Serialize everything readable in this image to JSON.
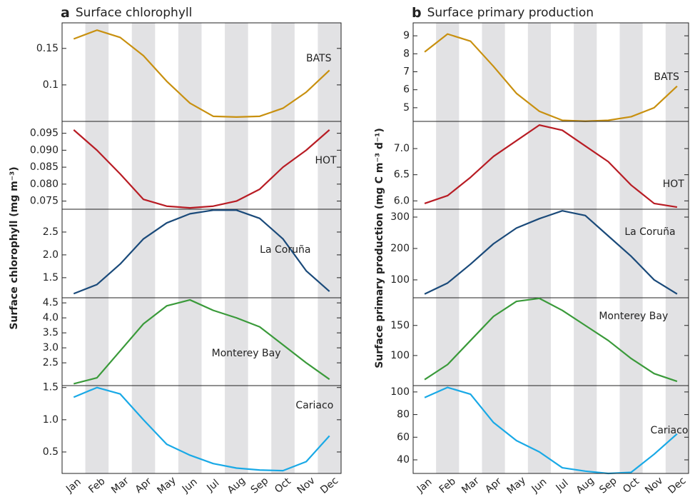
{
  "chart_data": [
    {
      "type": "line",
      "panel_label": "a",
      "title": "Surface chlorophyll",
      "y_label": "Surface chlorophyll (mg m⁻³)",
      "categories": [
        "Jan",
        "Feb",
        "Mar",
        "Apr",
        "May",
        "Jun",
        "Jul",
        "Aug",
        "Sep",
        "Oct",
        "Nov",
        "Dec"
      ],
      "panels": [
        {
          "name": "BATS",
          "color": "#c8900f",
          "values": [
            0.163,
            0.175,
            0.165,
            0.14,
            0.105,
            0.075,
            0.057,
            0.056,
            0.057,
            0.068,
            0.09,
            0.12
          ],
          "ylim": [
            0.05,
            0.185
          ],
          "yticks": [
            0.1,
            0.15
          ]
        },
        {
          "name": "HOT",
          "color": "#b81c24",
          "values": [
            0.096,
            0.09,
            0.083,
            0.0755,
            0.0735,
            0.073,
            0.0735,
            0.075,
            0.0785,
            0.085,
            0.09,
            0.096
          ],
          "ylim": [
            0.0726,
            0.0985
          ],
          "yticks": [
            0.075,
            {
              "value": 0.08,
              "label": "0.080"
            },
            0.085,
            {
              "value": 0.09,
              "label": "0.090"
            },
            0.095
          ]
        },
        {
          "name": "La Coruña",
          "color": "#1a4a7a",
          "values": [
            1.15,
            1.35,
            1.8,
            2.35,
            2.7,
            2.9,
            2.98,
            2.98,
            2.8,
            2.35,
            1.65,
            1.2
          ],
          "ylim": [
            1.06,
            3.0
          ],
          "yticks": [
            1.5,
            {
              "value": 2,
              "label": "2.0"
            },
            2.5
          ]
        },
        {
          "name": "Monterey Bay",
          "color": "#3a9a3a",
          "values": [
            1.8,
            2.0,
            2.9,
            3.8,
            4.4,
            4.6,
            4.25,
            4.0,
            3.7,
            3.1,
            2.5,
            1.95
          ],
          "ylim": [
            1.74,
            4.67
          ],
          "yticks": [
            2.5,
            {
              "value": 3,
              "label": "3.0"
            },
            3.5,
            {
              "value": 4,
              "label": "4.0"
            },
            4.5
          ]
        },
        {
          "name": "Cariaco",
          "color": "#19a9e6",
          "values": [
            1.35,
            1.5,
            1.4,
            1.0,
            0.62,
            0.45,
            0.32,
            0.25,
            0.22,
            0.21,
            0.35,
            0.75
          ],
          "ylim": [
            0.167,
            1.53
          ],
          "yticks": [
            0.5,
            {
              "value": 1,
              "label": "1.0"
            },
            1.5
          ]
        }
      ]
    },
    {
      "type": "line",
      "panel_label": "b",
      "title": "Surface primary production",
      "y_label": "Surface primary production (mg C m⁻³ d⁻¹)",
      "categories": [
        "Jan",
        "Feb",
        "Mar",
        "Apr",
        "May",
        "Jun",
        "Jul",
        "Aug",
        "Sep",
        "Oct",
        "Nov",
        "Dec"
      ],
      "panels": [
        {
          "name": "BATS",
          "color": "#c8900f",
          "values": [
            8.1,
            9.1,
            8.7,
            7.3,
            5.8,
            4.8,
            4.3,
            4.25,
            4.3,
            4.5,
            5.0,
            6.2
          ],
          "ylim": [
            4.24,
            9.72
          ],
          "yticks": [
            5,
            6,
            7,
            8,
            9
          ]
        },
        {
          "name": "HOT",
          "color": "#b81c24",
          "values": [
            5.95,
            6.1,
            6.45,
            6.85,
            7.15,
            7.45,
            7.35,
            7.05,
            6.75,
            6.3,
            5.95,
            5.88
          ],
          "ylim": [
            5.84,
            7.52
          ],
          "yticks": [
            {
              "value": 6,
              "label": "6.0"
            },
            6.5,
            {
              "value": 7,
              "label": "7.0"
            }
          ]
        },
        {
          "name": "La Coruña",
          "color": "#1a4a7a",
          "values": [
            55,
            90,
            150,
            215,
            265,
            295,
            320,
            305,
            240,
            175,
            100,
            55
          ],
          "ylim": [
            43,
            325
          ],
          "yticks": [
            100,
            200,
            300
          ]
        },
        {
          "name": "Monterey Bay",
          "color": "#3a9a3a",
          "values": [
            60,
            85,
            125,
            165,
            190,
            195,
            175,
            150,
            125,
            95,
            70,
            57
          ],
          "ylim": [
            50,
            196
          ],
          "yticks": [
            100,
            150
          ]
        },
        {
          "name": "Cariaco",
          "color": "#19a9e6",
          "values": [
            95,
            104,
            98,
            73,
            57,
            47,
            33,
            30,
            28,
            29,
            45,
            63
          ],
          "ylim": [
            28,
            105.6
          ],
          "yticks": [
            40,
            60,
            80,
            100
          ]
        }
      ]
    }
  ]
}
